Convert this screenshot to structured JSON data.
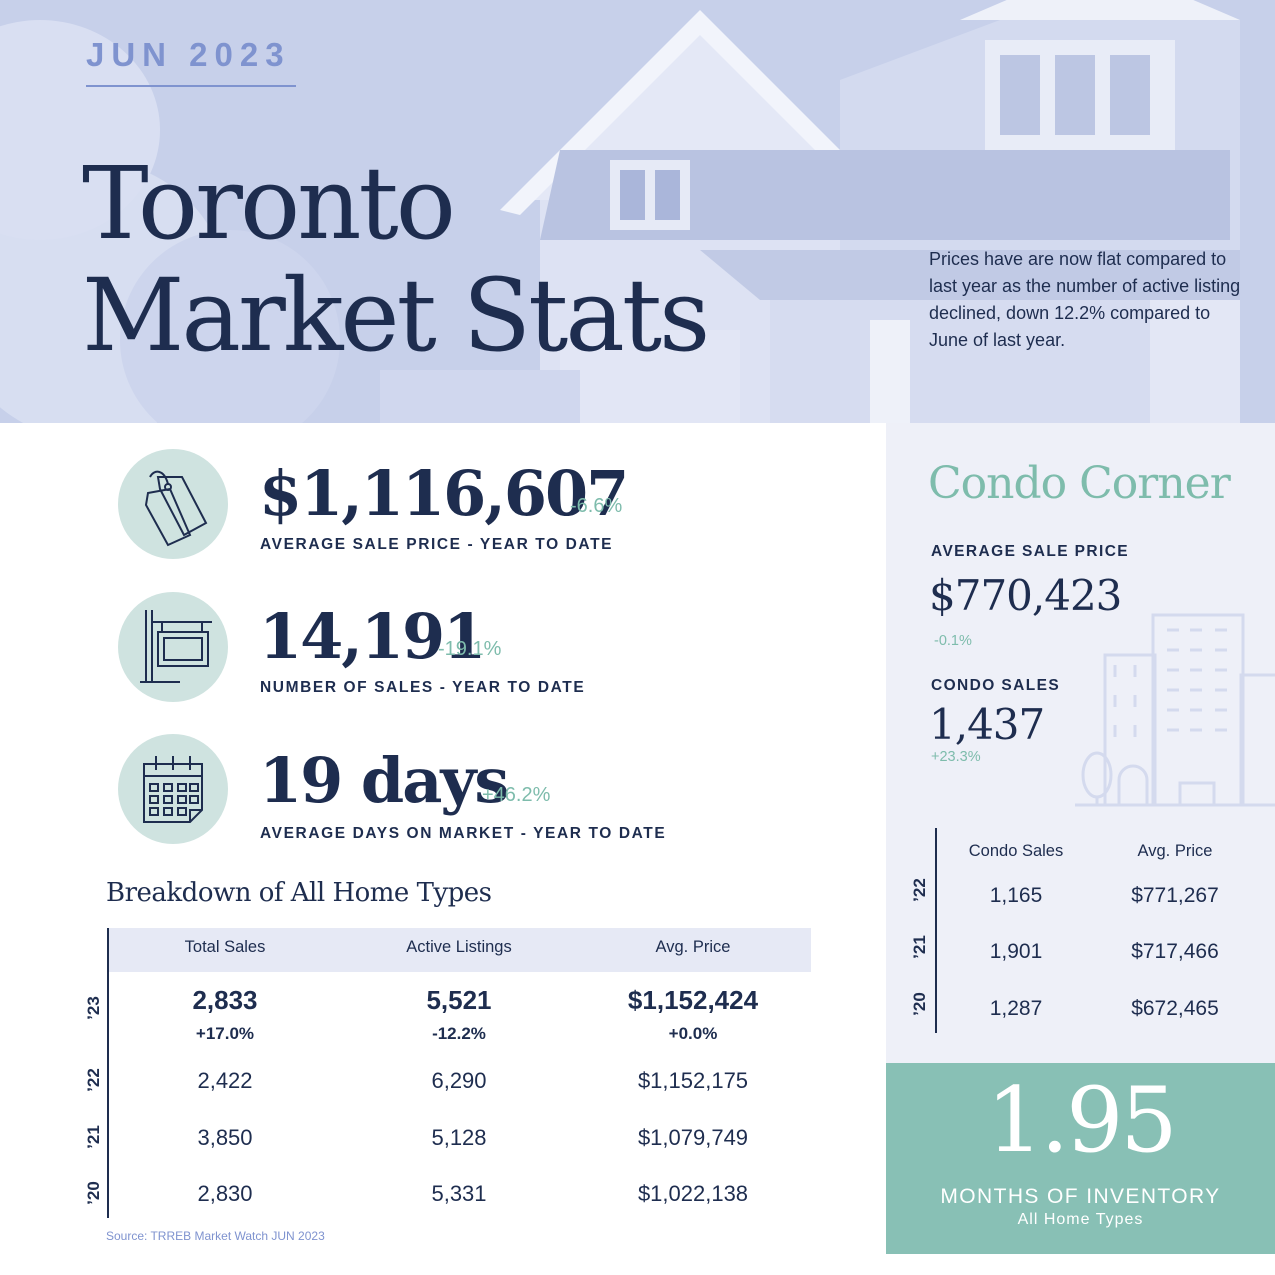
{
  "header": {
    "date": "JUN 2023",
    "title_line1": "Toronto",
    "title_line2": "Market Stats",
    "intro": "Prices have are now flat compared to last year as the number of active listing declined, down 12.2% compared to June of last year."
  },
  "stats": [
    {
      "value": "$1,116,607",
      "change": "-6.6%",
      "label": "AVERAGE SALE PRICE - YEAR TO DATE",
      "icon": "price-tags-icon"
    },
    {
      "value": "14,191",
      "change": "-19.1%",
      "label": "NUMBER OF SALES - YEAR TO DATE",
      "icon": "for-sale-sign-icon"
    },
    {
      "value": "19 days",
      "change": "+46.2%",
      "label": "AVERAGE DAYS ON MARKET - YEAR TO DATE",
      "icon": "calendar-icon"
    }
  ],
  "breakdown": {
    "title": "Breakdown of All Home Types",
    "headers": [
      "Total Sales",
      "Active Listings",
      "Avg. Price"
    ],
    "current": {
      "year": "’23",
      "values": [
        "2,833",
        "5,521",
        "$1,152,424"
      ],
      "changes": [
        "+17.0%",
        "-12.2%",
        "+0.0%"
      ]
    },
    "rows": [
      {
        "year": "’22",
        "values": [
          "2,422",
          "6,290",
          "$1,152,175"
        ]
      },
      {
        "year": "’21",
        "values": [
          "3,850",
          "5,128",
          "$1,079,749"
        ]
      },
      {
        "year": "’20",
        "values": [
          "2,830",
          "5,331",
          "$1,022,138"
        ]
      }
    ]
  },
  "source": "Source: TRREB Market Watch JUN 2023",
  "condo": {
    "title": "Condo Corner",
    "avg_price_label": "AVERAGE SALE PRICE",
    "avg_price": "$770,423",
    "avg_price_change": "-0.1%",
    "sales_label": "CONDO SALES",
    "sales": "1,437",
    "sales_change": "+23.3%",
    "table_headers": [
      "Condo Sales",
      "Avg. Price"
    ],
    "rows": [
      {
        "year": "’22",
        "values": [
          "1,165",
          "$771,267"
        ]
      },
      {
        "year": "’21",
        "values": [
          "1,901",
          "$717,466"
        ]
      },
      {
        "year": "’20",
        "values": [
          "1,287",
          "$672,465"
        ]
      }
    ]
  },
  "inventory": {
    "value": "1.95",
    "label": "MONTHS OF INVENTORY",
    "sublabel": "All Home Types"
  },
  "colors": {
    "navy": "#1e2d4f",
    "periwinkle": "#7f93cf",
    "teal": "#7ebcac",
    "teal_box": "#88c0b5",
    "hero_bg": "#c7d0ea"
  }
}
